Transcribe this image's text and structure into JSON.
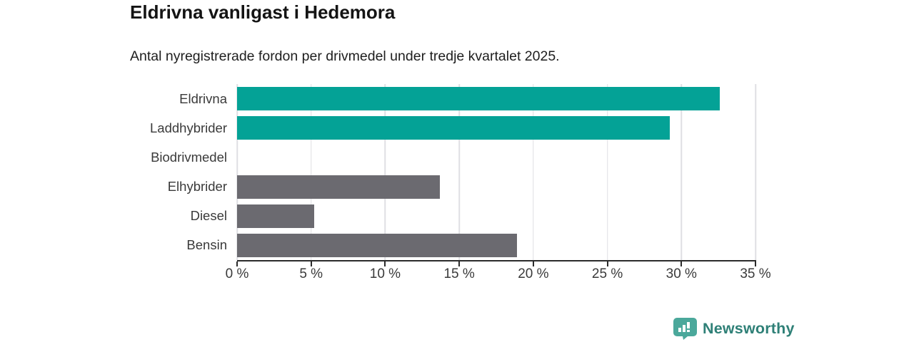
{
  "header": {
    "title": "Eldrivna vanligast i Hedemora",
    "subtitle": "Antal nyregistrerade fordon per drivmedel under tredje kvartalet 2025."
  },
  "chart_data": {
    "type": "bar",
    "orientation": "horizontal",
    "title": "Eldrivna vanligast i Hedemora",
    "subtitle": "Antal nyregistrerade fordon per drivmedel under tredje kvartalet 2025.",
    "categories": [
      "Eldrivna",
      "Laddhybrider",
      "Biodrivmedel",
      "Elhybrider",
      "Diesel",
      "Bensin"
    ],
    "values": [
      32.6,
      29.2,
      0,
      13.7,
      5.2,
      18.9
    ],
    "unit": "%",
    "bar_color_keys": [
      "teal",
      "teal",
      "none",
      "gray",
      "gray",
      "gray"
    ],
    "colors": {
      "teal": "#04a296",
      "gray": "#6b6a70"
    },
    "xlim": [
      0,
      35
    ],
    "x_tick_step": 5,
    "x_tick_labels": [
      "0 %",
      "5 %",
      "10 %",
      "15 %",
      "20 %",
      "25 %",
      "30 %",
      "35 %"
    ],
    "grid": "vertical-gridlines-on",
    "legend": "none"
  },
  "footer": {
    "brand": "Newsworthy",
    "logo_icon": "speech-bubble-bar-chart-icon",
    "logo_icon_color": "#4ba89b",
    "logo_text_color": "#2f8077"
  }
}
